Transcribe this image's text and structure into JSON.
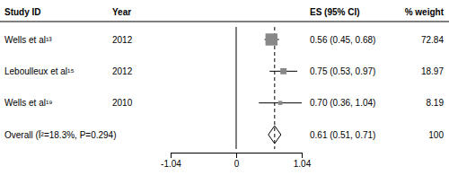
{
  "chart_data": {
    "type": "forest",
    "headers": [
      "Study ID",
      "Year",
      "ES (95% CI)",
      "% weight"
    ],
    "categories": [
      "Wells et al¹³",
      "Leboulleux et al¹⁵",
      "Wells et al¹⁹"
    ],
    "years": [
      "2012",
      "2012",
      "2010"
    ],
    "values": [
      0.56,
      0.75,
      0.7
    ],
    "ci_low": [
      0.45,
      0.53,
      0.36
    ],
    "ci_high": [
      0.68,
      0.97,
      1.04
    ],
    "value_labels": [
      "0.56 (0.45, 0.68)",
      "0.75 (0.53, 0.97)",
      "0.70 (0.36, 1.04)"
    ],
    "weights": [
      72.84,
      18.97,
      8.19
    ],
    "overall": {
      "label": "Overall (Ï²=18.3%, P=0.294)",
      "value": 0.61,
      "ci_low": 0.51,
      "ci_high": 0.71,
      "value_label": "0.61 (0.51, 0.71)",
      "weight": 100
    },
    "lines": [
      {
        "value": 0,
        "line_style": "solid"
      },
      {
        "value": 0.61,
        "line_style": "dashed"
      }
    ],
    "color": "#888888",
    "xlim": [
      -1.04,
      1.04
    ],
    "xticks": [
      -1.04,
      0,
      1.04
    ],
    "grid": false
  }
}
